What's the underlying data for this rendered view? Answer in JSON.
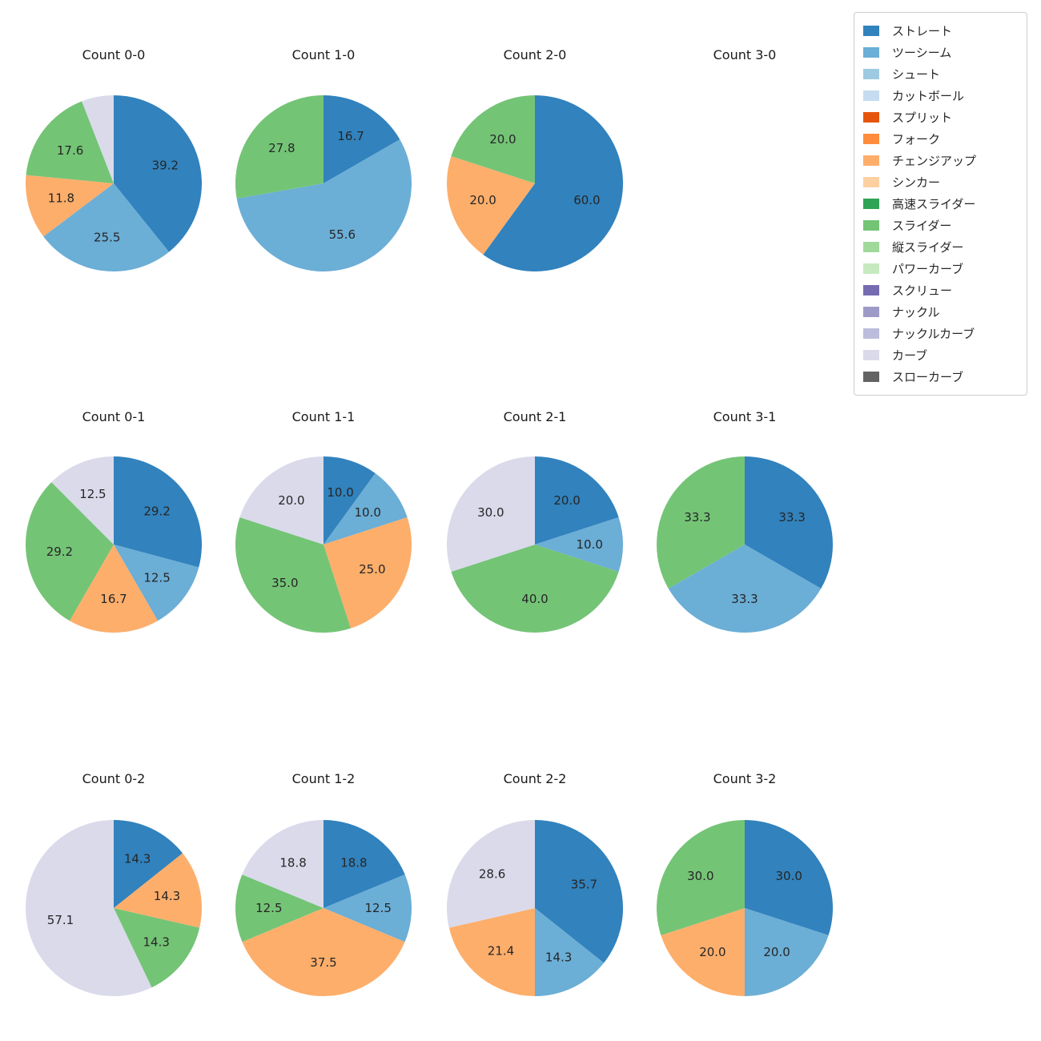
{
  "legend": {
    "items": [
      {
        "label": "ストレート",
        "color": "#3182bd"
      },
      {
        "label": "ツーシーム",
        "color": "#6baed6"
      },
      {
        "label": "シュート",
        "color": "#9ecae1"
      },
      {
        "label": "カットボール",
        "color": "#c6dbef"
      },
      {
        "label": "スプリット",
        "color": "#e6550d"
      },
      {
        "label": "フォーク",
        "color": "#fd8d3c"
      },
      {
        "label": "チェンジアップ",
        "color": "#fdae6b"
      },
      {
        "label": "シンカー",
        "color": "#fdd0a2"
      },
      {
        "label": "高速スライダー",
        "color": "#31a354"
      },
      {
        "label": "スライダー",
        "color": "#74c476"
      },
      {
        "label": "縦スライダー",
        "color": "#a1d99b"
      },
      {
        "label": "パワーカーブ",
        "color": "#c7e9c0"
      },
      {
        "label": "スクリュー",
        "color": "#756bb1"
      },
      {
        "label": "ナックル",
        "color": "#9e9ac8"
      },
      {
        "label": "ナックルカーブ",
        "color": "#bcbddc"
      },
      {
        "label": "カーブ",
        "color": "#dadaeb"
      },
      {
        "label": "スローカーブ",
        "color": "#636363"
      }
    ]
  },
  "chart_data": [
    {
      "type": "pie",
      "title": "Count 0-0",
      "start_angle": "top",
      "direction": "clockwise",
      "slices": [
        {
          "name": "ストレート",
          "value": 39.2,
          "label": "39.2"
        },
        {
          "name": "ツーシーム",
          "value": 25.5,
          "label": "25.5"
        },
        {
          "name": "チェンジアップ",
          "value": 11.8,
          "label": "11.8"
        },
        {
          "name": "スライダー",
          "value": 17.6,
          "label": "17.6"
        },
        {
          "name": "カーブ",
          "value": 5.9,
          "label": ""
        }
      ]
    },
    {
      "type": "pie",
      "title": "Count 1-0",
      "start_angle": "top",
      "direction": "clockwise",
      "slices": [
        {
          "name": "ストレート",
          "value": 16.7,
          "label": "16.7"
        },
        {
          "name": "ツーシーム",
          "value": 55.6,
          "label": "55.6"
        },
        {
          "name": "スライダー",
          "value": 27.8,
          "label": "27.8"
        }
      ]
    },
    {
      "type": "pie",
      "title": "Count 2-0",
      "start_angle": "top",
      "direction": "clockwise",
      "slices": [
        {
          "name": "ストレート",
          "value": 60.0,
          "label": "60.0"
        },
        {
          "name": "チェンジアップ",
          "value": 20.0,
          "label": "20.0"
        },
        {
          "name": "スライダー",
          "value": 20.0,
          "label": "20.0"
        }
      ]
    },
    {
      "type": "pie",
      "title": "Count 3-0",
      "start_angle": "top",
      "direction": "clockwise",
      "slices": []
    },
    {
      "type": "pie",
      "title": "Count 0-1",
      "start_angle": "top",
      "direction": "clockwise",
      "slices": [
        {
          "name": "ストレート",
          "value": 29.2,
          "label": "29.2"
        },
        {
          "name": "ツーシーム",
          "value": 12.5,
          "label": "12.5"
        },
        {
          "name": "チェンジアップ",
          "value": 16.7,
          "label": "16.7"
        },
        {
          "name": "スライダー",
          "value": 29.2,
          "label": "29.2"
        },
        {
          "name": "カーブ",
          "value": 12.5,
          "label": "12.5"
        }
      ]
    },
    {
      "type": "pie",
      "title": "Count 1-1",
      "start_angle": "top",
      "direction": "clockwise",
      "slices": [
        {
          "name": "ストレート",
          "value": 10.0,
          "label": "10.0"
        },
        {
          "name": "ツーシーム",
          "value": 10.0,
          "label": "10.0"
        },
        {
          "name": "チェンジアップ",
          "value": 25.0,
          "label": "25.0"
        },
        {
          "name": "スライダー",
          "value": 35.0,
          "label": "35.0"
        },
        {
          "name": "カーブ",
          "value": 20.0,
          "label": "20.0"
        }
      ]
    },
    {
      "type": "pie",
      "title": "Count 2-1",
      "start_angle": "top",
      "direction": "clockwise",
      "slices": [
        {
          "name": "ストレート",
          "value": 20.0,
          "label": "20.0"
        },
        {
          "name": "ツーシーム",
          "value": 10.0,
          "label": "10.0"
        },
        {
          "name": "スライダー",
          "value": 40.0,
          "label": "40.0"
        },
        {
          "name": "カーブ",
          "value": 30.0,
          "label": "30.0"
        }
      ]
    },
    {
      "type": "pie",
      "title": "Count 3-1",
      "start_angle": "top",
      "direction": "clockwise",
      "slices": [
        {
          "name": "ストレート",
          "value": 33.3,
          "label": "33.3"
        },
        {
          "name": "ツーシーム",
          "value": 33.3,
          "label": "33.3"
        },
        {
          "name": "スライダー",
          "value": 33.3,
          "label": "33.3"
        }
      ]
    },
    {
      "type": "pie",
      "title": "Count 0-2",
      "start_angle": "top",
      "direction": "clockwise",
      "slices": [
        {
          "name": "ストレート",
          "value": 14.3,
          "label": "14.3"
        },
        {
          "name": "チェンジアップ",
          "value": 14.3,
          "label": "14.3"
        },
        {
          "name": "スライダー",
          "value": 14.3,
          "label": "14.3"
        },
        {
          "name": "カーブ",
          "value": 57.1,
          "label": "57.1"
        }
      ]
    },
    {
      "type": "pie",
      "title": "Count 1-2",
      "start_angle": "top",
      "direction": "clockwise",
      "slices": [
        {
          "name": "ストレート",
          "value": 18.8,
          "label": "18.8"
        },
        {
          "name": "ツーシーム",
          "value": 12.5,
          "label": "12.5"
        },
        {
          "name": "チェンジアップ",
          "value": 37.5,
          "label": "37.5"
        },
        {
          "name": "スライダー",
          "value": 12.5,
          "label": "12.5"
        },
        {
          "name": "カーブ",
          "value": 18.8,
          "label": "18.8"
        }
      ]
    },
    {
      "type": "pie",
      "title": "Count 2-2",
      "start_angle": "top",
      "direction": "clockwise",
      "slices": [
        {
          "name": "ストレート",
          "value": 35.7,
          "label": "35.7"
        },
        {
          "name": "ツーシーム",
          "value": 14.3,
          "label": "14.3"
        },
        {
          "name": "チェンジアップ",
          "value": 21.4,
          "label": "21.4"
        },
        {
          "name": "カーブ",
          "value": 28.6,
          "label": "28.6"
        }
      ]
    },
    {
      "type": "pie",
      "title": "Count 3-2",
      "start_angle": "top",
      "direction": "clockwise",
      "slices": [
        {
          "name": "ストレート",
          "value": 30.0,
          "label": "30.0"
        },
        {
          "name": "ツーシーム",
          "value": 20.0,
          "label": "20.0"
        },
        {
          "name": "チェンジアップ",
          "value": 20.0,
          "label": "20.0"
        },
        {
          "name": "スライダー",
          "value": 30.0,
          "label": "30.0"
        }
      ]
    }
  ]
}
